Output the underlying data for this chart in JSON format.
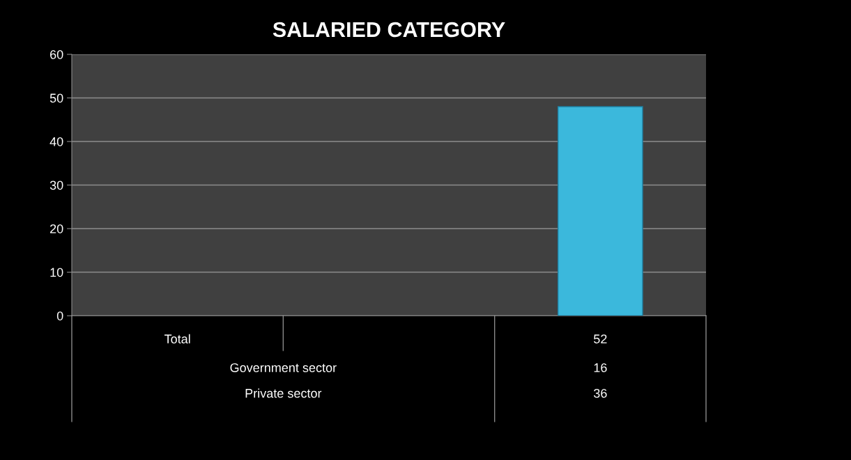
{
  "chart_data": {
    "type": "bar",
    "title": "SALARIED CATEGORY",
    "categories": [
      null,
      null,
      null
    ],
    "values": [
      null,
      null,
      48
    ],
    "color": "#3bb8dc",
    "ylim": [
      0,
      60
    ],
    "yticks": [
      0,
      10,
      20,
      30,
      40,
      50,
      60
    ],
    "grid": "y",
    "legend": false,
    "annotations": [
      "Total",
      "52",
      "Government sector",
      "16",
      "Private sector",
      "36"
    ]
  }
}
